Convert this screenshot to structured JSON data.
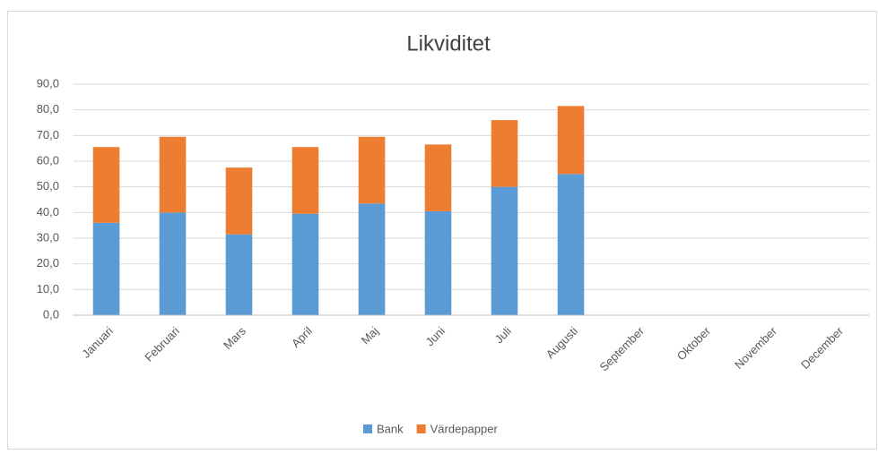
{
  "chart_data": {
    "type": "stacked_bar",
    "title": "Likviditet",
    "categories": [
      "Januari",
      "Februari",
      "Mars",
      "April",
      "Maj",
      "Juni",
      "Juli",
      "Augusti",
      "September",
      "Oktober",
      "November",
      "December"
    ],
    "series": [
      {
        "name": "Bank",
        "color": "#5b9bd5",
        "values": [
          36,
          40,
          31.5,
          39.5,
          43.5,
          40.5,
          50,
          55,
          null,
          null,
          null,
          null
        ]
      },
      {
        "name": "Värdepapper",
        "color": "#ed7d31",
        "values": [
          29.5,
          29.5,
          26,
          26,
          26,
          26,
          26,
          26.5,
          null,
          null,
          null,
          null
        ]
      }
    ],
    "ylim": [
      0,
      90
    ],
    "yticks": [
      {
        "value": 0,
        "label": "0,0"
      },
      {
        "value": 10,
        "label": "10,0"
      },
      {
        "value": 20,
        "label": "20,0"
      },
      {
        "value": 30,
        "label": "30,0"
      },
      {
        "value": 40,
        "label": "40,0"
      },
      {
        "value": 50,
        "label": "50,0"
      },
      {
        "value": 60,
        "label": "60,0"
      },
      {
        "value": 70,
        "label": "70,0"
      },
      {
        "value": 80,
        "label": "80,0"
      },
      {
        "value": 90,
        "label": "90,0"
      }
    ],
    "grid": true,
    "legend": "bottom"
  }
}
